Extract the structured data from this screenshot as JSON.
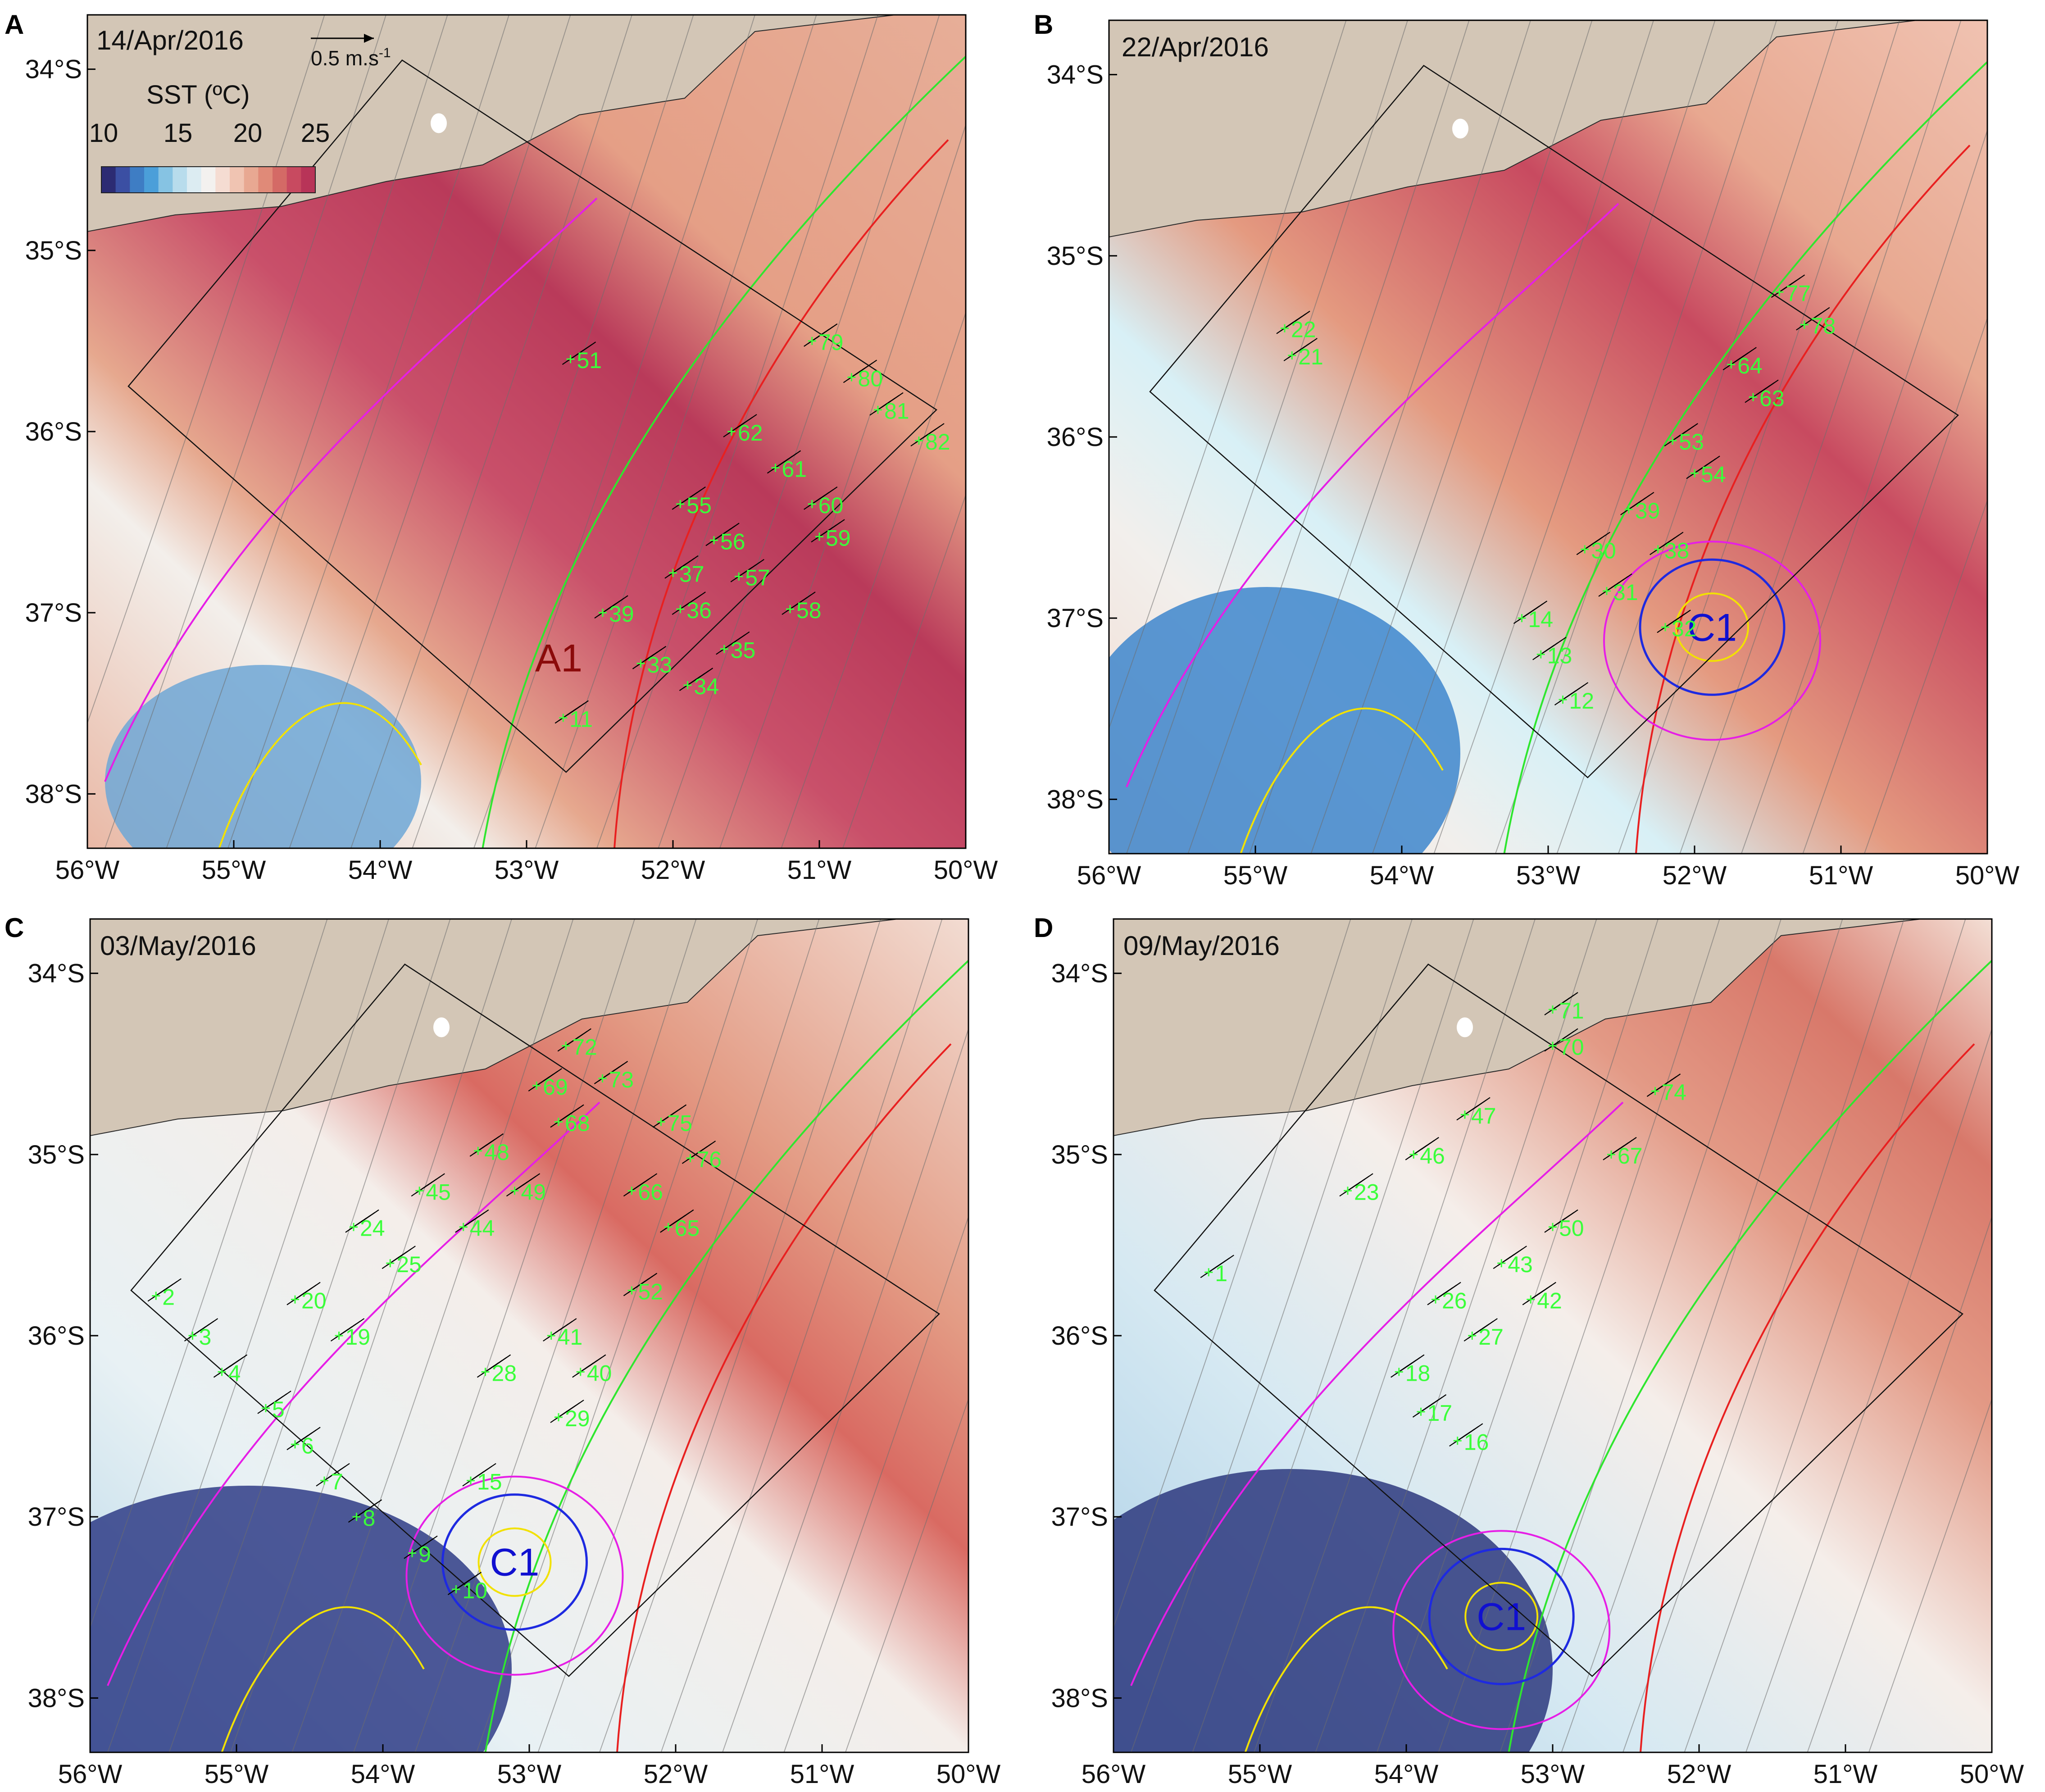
{
  "colors": {
    "land": "#d3c6b6",
    "coast": "#2a2a2a",
    "cold": "#4a5ab0",
    "warm": "#c24466",
    "contour_magenta": "#e61ee6",
    "contour_red": "#e82020",
    "contour_blue": "#1e2ae0",
    "contour_yellow": "#f2e100",
    "isobath_green": "#2fe62f",
    "station_label": "#3aff3a",
    "eddy_warm": "#8b0a0a",
    "eddy_cold": "#1010d0"
  },
  "legend": {
    "vector_label": "0.5 m.s",
    "vector_exp": "-1",
    "sst_title": "SST (ºC)",
    "sst_ticks": [
      "10",
      "15",
      "20",
      "25"
    ],
    "sst_colors": [
      "#2c2b73",
      "#3b4fa3",
      "#3e7dc4",
      "#4b9fd9",
      "#86c3e3",
      "#b8dcec",
      "#dcecf2",
      "#f3f1ef",
      "#f5dcd2",
      "#f0c4b2",
      "#e8a892",
      "#e08a78",
      "#d46a66",
      "#c84a60",
      "#b83458"
    ]
  },
  "axes": {
    "x_ticks": [
      "56°W",
      "55°W",
      "54°W",
      "53°W",
      "52°W",
      "51°W",
      "50°W"
    ],
    "y_ticks": [
      "34°S",
      "35°S",
      "36°S",
      "37°S",
      "38°S"
    ]
  },
  "panels": [
    {
      "letter": "A",
      "date": "14/Apr/2016",
      "eddy": {
        "label": "A1",
        "lon": -52.78,
        "lat": -37.25,
        "kind": "warm"
      },
      "stations": [
        {
          "id": "11",
          "lon": -52.75,
          "lat": -37.58
        },
        {
          "id": "33",
          "lon": -52.22,
          "lat": -37.28
        },
        {
          "id": "34",
          "lon": -51.9,
          "lat": -37.4
        },
        {
          "id": "35",
          "lon": -51.65,
          "lat": -37.2
        },
        {
          "id": "36",
          "lon": -51.95,
          "lat": -36.98
        },
        {
          "id": "37",
          "lon": -52.0,
          "lat": -36.78
        },
        {
          "id": "39",
          "lon": -52.48,
          "lat": -37.0
        },
        {
          "id": "51",
          "lon": -52.7,
          "lat": -35.6
        },
        {
          "id": "55",
          "lon": -51.95,
          "lat": -36.4
        },
        {
          "id": "56",
          "lon": -51.72,
          "lat": -36.6
        },
        {
          "id": "57",
          "lon": -51.55,
          "lat": -36.8
        },
        {
          "id": "58",
          "lon": -51.2,
          "lat": -36.98
        },
        {
          "id": "59",
          "lon": -51.0,
          "lat": -36.58
        },
        {
          "id": "60",
          "lon": -51.05,
          "lat": -36.4
        },
        {
          "id": "61",
          "lon": -51.3,
          "lat": -36.2
        },
        {
          "id": "62",
          "lon": -51.6,
          "lat": -36.0
        },
        {
          "id": "79",
          "lon": -51.05,
          "lat": -35.5
        },
        {
          "id": "80",
          "lon": -50.78,
          "lat": -35.7
        },
        {
          "id": "81",
          "lon": -50.6,
          "lat": -35.88
        },
        {
          "id": "82",
          "lon": -50.32,
          "lat": -36.05
        }
      ]
    },
    {
      "letter": "B",
      "date": "22/Apr/2016",
      "eddy": {
        "label": "C1",
        "lon": -51.88,
        "lat": -37.05,
        "kind": "cold"
      },
      "stations": [
        {
          "id": "12",
          "lon": -52.9,
          "lat": -37.45
        },
        {
          "id": "13",
          "lon": -53.05,
          "lat": -37.2
        },
        {
          "id": "14",
          "lon": -53.18,
          "lat": -37.0
        },
        {
          "id": "21",
          "lon": -54.75,
          "lat": -35.55
        },
        {
          "id": "22",
          "lon": -54.8,
          "lat": -35.4
        },
        {
          "id": "30",
          "lon": -52.75,
          "lat": -36.62
        },
        {
          "id": "31",
          "lon": -52.6,
          "lat": -36.85
        },
        {
          "id": "32",
          "lon": -52.2,
          "lat": -37.05
        },
        {
          "id": "38",
          "lon": -52.25,
          "lat": -36.62
        },
        {
          "id": "39",
          "lon": -52.45,
          "lat": -36.4
        },
        {
          "id": "53",
          "lon": -52.15,
          "lat": -36.02
        },
        {
          "id": "54",
          "lon": -52.0,
          "lat": -36.2
        },
        {
          "id": "63",
          "lon": -51.6,
          "lat": -35.78
        },
        {
          "id": "64",
          "lon": -51.75,
          "lat": -35.6
        },
        {
          "id": "77",
          "lon": -51.42,
          "lat": -35.2
        },
        {
          "id": "78",
          "lon": -51.25,
          "lat": -35.38
        }
      ]
    },
    {
      "letter": "C",
      "date": "03/May/2016",
      "eddy": {
        "label": "C1",
        "lon": -53.1,
        "lat": -37.25,
        "kind": "cold"
      },
      "stations": [
        {
          "id": "2",
          "lon": -55.55,
          "lat": -35.78
        },
        {
          "id": "3",
          "lon": -55.3,
          "lat": -36.0
        },
        {
          "id": "4",
          "lon": -55.1,
          "lat": -36.2
        },
        {
          "id": "5",
          "lon": -54.8,
          "lat": -36.4
        },
        {
          "id": "6",
          "lon": -54.6,
          "lat": -36.6
        },
        {
          "id": "7",
          "lon": -54.4,
          "lat": -36.8
        },
        {
          "id": "8",
          "lon": -54.18,
          "lat": -37.0
        },
        {
          "id": "9",
          "lon": -53.8,
          "lat": -37.2
        },
        {
          "id": "10",
          "lon": -53.5,
          "lat": -37.4
        },
        {
          "id": "15",
          "lon": -53.4,
          "lat": -36.8
        },
        {
          "id": "19",
          "lon": -54.3,
          "lat": -36.0
        },
        {
          "id": "20",
          "lon": -54.6,
          "lat": -35.8
        },
        {
          "id": "24",
          "lon": -54.2,
          "lat": -35.4
        },
        {
          "id": "25",
          "lon": -53.95,
          "lat": -35.6
        },
        {
          "id": "28",
          "lon": -53.3,
          "lat": -36.2
        },
        {
          "id": "29",
          "lon": -52.8,
          "lat": -36.45
        },
        {
          "id": "40",
          "lon": -52.65,
          "lat": -36.2
        },
        {
          "id": "41",
          "lon": -52.85,
          "lat": -36.0
        },
        {
          "id": "44",
          "lon": -53.45,
          "lat": -35.4
        },
        {
          "id": "45",
          "lon": -53.75,
          "lat": -35.2
        },
        {
          "id": "48",
          "lon": -53.35,
          "lat": -34.98
        },
        {
          "id": "49",
          "lon": -53.1,
          "lat": -35.2
        },
        {
          "id": "52",
          "lon": -52.3,
          "lat": -35.75
        },
        {
          "id": "65",
          "lon": -52.05,
          "lat": -35.4
        },
        {
          "id": "66",
          "lon": -52.3,
          "lat": -35.2
        },
        {
          "id": "68",
          "lon": -52.8,
          "lat": -34.82
        },
        {
          "id": "69",
          "lon": -52.95,
          "lat": -34.62
        },
        {
          "id": "72",
          "lon": -52.75,
          "lat": -34.4
        },
        {
          "id": "73",
          "lon": -52.5,
          "lat": -34.58
        },
        {
          "id": "75",
          "lon": -52.1,
          "lat": -34.82
        },
        {
          "id": "76",
          "lon": -51.9,
          "lat": -35.02
        }
      ]
    },
    {
      "letter": "D",
      "date": "09/May/2016",
      "eddy": {
        "label": "C1",
        "lon": -53.35,
        "lat": -37.55,
        "kind": "cold"
      },
      "stations": [
        {
          "id": "1",
          "lon": -55.35,
          "lat": -35.65
        },
        {
          "id": "16",
          "lon": -53.65,
          "lat": -36.58
        },
        {
          "id": "17",
          "lon": -53.9,
          "lat": -36.42
        },
        {
          "id": "18",
          "lon": -54.05,
          "lat": -36.2
        },
        {
          "id": "23",
          "lon": -54.4,
          "lat": -35.2
        },
        {
          "id": "26",
          "lon": -53.8,
          "lat": -35.8
        },
        {
          "id": "27",
          "lon": -53.55,
          "lat": -36.0
        },
        {
          "id": "42",
          "lon": -53.15,
          "lat": -35.8
        },
        {
          "id": "43",
          "lon": -53.35,
          "lat": -35.6
        },
        {
          "id": "46",
          "lon": -53.95,
          "lat": -35.0
        },
        {
          "id": "47",
          "lon": -53.6,
          "lat": -34.78
        },
        {
          "id": "50",
          "lon": -53.0,
          "lat": -35.4
        },
        {
          "id": "67",
          "lon": -52.6,
          "lat": -35.0
        },
        {
          "id": "70",
          "lon": -53.0,
          "lat": -34.4
        },
        {
          "id": "71",
          "lon": -53.0,
          "lat": -34.2
        },
        {
          "id": "74",
          "lon": -52.3,
          "lat": -34.65
        }
      ]
    }
  ]
}
